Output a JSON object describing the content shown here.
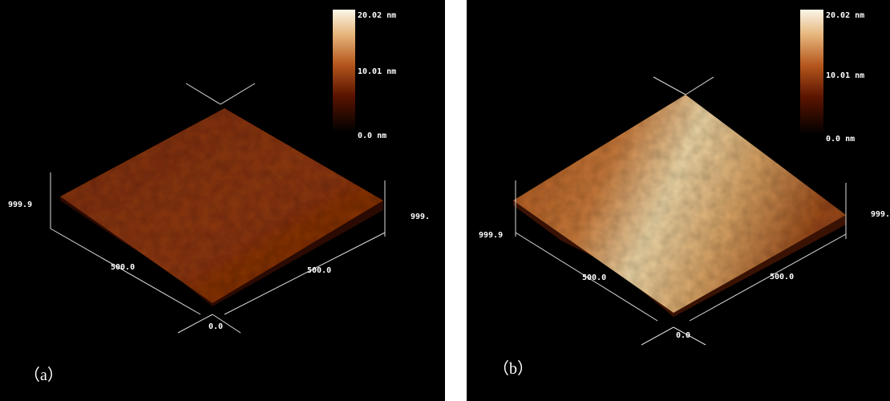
{
  "panels": [
    {
      "label": "（a）",
      "colorbar": {
        "max": "20.02 nm",
        "mid": "10.01 nm",
        "min": "0.0 nm"
      },
      "axes": {
        "left": "999.9",
        "right": "999.",
        "front_left": "500.0",
        "front_right": "500.0",
        "origin": "0.0"
      }
    },
    {
      "label": "（b）",
      "colorbar": {
        "max": "20.02 nm",
        "mid": "10.01 nm",
        "min": "0.0 nm"
      },
      "axes": {
        "left": "999.9",
        "right": "999.",
        "front_left": "500.0",
        "front_right": "500.0",
        "origin": "0.0"
      }
    }
  ]
}
